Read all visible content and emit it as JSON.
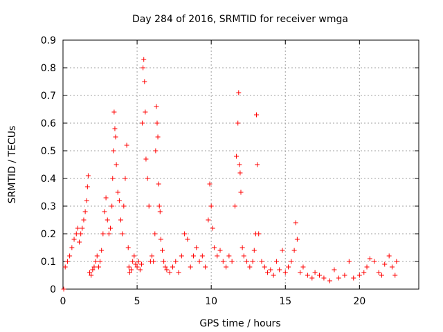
{
  "chart_data": {
    "type": "scatter",
    "title": "Day 284 of 2016, SRMTID for receiver wmga",
    "xlabel": "GPS time / hours",
    "ylabel": "SRMTID / TECUs",
    "xlim": [
      0,
      24
    ],
    "ylim": [
      0,
      0.9
    ],
    "xticks": [
      "0",
      "5",
      "10",
      "15",
      "20"
    ],
    "yticks": [
      "0",
      "0.1",
      "0.2",
      "0.3",
      "0.4",
      "0.5",
      "0.6",
      "0.7",
      "0.8",
      "0.9"
    ],
    "grid": true,
    "marker": "+",
    "color": "#ff0000",
    "series": [
      {
        "name": "SRMTID",
        "x": [
          0.05,
          0.15,
          0.3,
          0.45,
          0.6,
          0.75,
          0.9,
          1.0,
          1.1,
          1.2,
          1.3,
          1.4,
          1.5,
          1.6,
          1.65,
          1.7,
          1.8,
          1.9,
          2.0,
          2.1,
          2.2,
          2.3,
          2.4,
          2.5,
          2.6,
          2.7,
          2.8,
          2.9,
          3.0,
          3.1,
          3.2,
          3.3,
          3.35,
          3.4,
          3.45,
          3.5,
          3.55,
          3.6,
          3.7,
          3.8,
          3.9,
          4.0,
          4.1,
          4.2,
          4.3,
          4.4,
          4.45,
          4.5,
          4.6,
          4.7,
          4.8,
          4.9,
          5.0,
          5.1,
          5.2,
          5.3,
          5.35,
          5.4,
          5.45,
          5.5,
          5.55,
          5.6,
          5.7,
          5.8,
          5.9,
          6.0,
          6.1,
          6.2,
          6.25,
          6.3,
          6.35,
          6.4,
          6.45,
          6.5,
          6.55,
          6.6,
          6.7,
          6.8,
          6.9,
          7.0,
          7.2,
          7.4,
          7.6,
          7.8,
          8.0,
          8.2,
          8.4,
          8.6,
          8.8,
          9.0,
          9.2,
          9.4,
          9.6,
          9.8,
          9.9,
          10.0,
          10.1,
          10.2,
          10.4,
          10.6,
          10.8,
          11.0,
          11.2,
          11.4,
          11.6,
          11.7,
          11.8,
          11.85,
          11.9,
          11.95,
          12.0,
          12.1,
          12.2,
          12.4,
          12.6,
          12.8,
          12.9,
          13.0,
          13.05,
          13.1,
          13.2,
          13.4,
          13.6,
          13.8,
          14.0,
          14.2,
          14.4,
          14.6,
          14.8,
          15.0,
          15.2,
          15.4,
          15.6,
          15.7,
          15.8,
          16.0,
          16.2,
          16.5,
          16.8,
          17.0,
          17.3,
          17.6,
          18.0,
          18.3,
          18.6,
          19.0,
          19.3,
          19.6,
          20.0,
          20.3,
          20.5,
          20.7,
          21.0,
          21.3,
          21.5,
          21.7,
          22.0,
          22.2,
          22.4,
          22.5
        ],
        "y": [
          0.0,
          0.08,
          0.1,
          0.12,
          0.15,
          0.18,
          0.2,
          0.22,
          0.17,
          0.2,
          0.22,
          0.25,
          0.28,
          0.32,
          0.37,
          0.41,
          0.06,
          0.05,
          0.07,
          0.08,
          0.1,
          0.12,
          0.08,
          0.1,
          0.14,
          0.2,
          0.28,
          0.33,
          0.25,
          0.2,
          0.22,
          0.3,
          0.4,
          0.5,
          0.64,
          0.58,
          0.55,
          0.45,
          0.35,
          0.32,
          0.25,
          0.2,
          0.3,
          0.4,
          0.52,
          0.15,
          0.08,
          0.06,
          0.07,
          0.1,
          0.12,
          0.09,
          0.08,
          0.1,
          0.07,
          0.09,
          0.6,
          0.8,
          0.83,
          0.75,
          0.64,
          0.47,
          0.4,
          0.3,
          0.1,
          0.12,
          0.1,
          0.2,
          0.5,
          0.66,
          0.6,
          0.55,
          0.38,
          0.3,
          0.28,
          0.18,
          0.14,
          0.1,
          0.08,
          0.07,
          0.06,
          0.08,
          0.1,
          0.06,
          0.12,
          0.2,
          0.18,
          0.08,
          0.12,
          0.15,
          0.1,
          0.12,
          0.08,
          0.25,
          0.38,
          0.3,
          0.22,
          0.15,
          0.12,
          0.14,
          0.1,
          0.08,
          0.12,
          0.1,
          0.3,
          0.48,
          0.6,
          0.71,
          0.45,
          0.42,
          0.35,
          0.15,
          0.12,
          0.1,
          0.08,
          0.1,
          0.14,
          0.2,
          0.63,
          0.45,
          0.2,
          0.1,
          0.08,
          0.06,
          0.07,
          0.05,
          0.1,
          0.07,
          0.14,
          0.06,
          0.08,
          0.1,
          0.14,
          0.24,
          0.18,
          0.06,
          0.08,
          0.05,
          0.04,
          0.06,
          0.05,
          0.04,
          0.03,
          0.07,
          0.04,
          0.05,
          0.1,
          0.04,
          0.05,
          0.06,
          0.08,
          0.11,
          0.1,
          0.06,
          0.05,
          0.09,
          0.12,
          0.08,
          0.05,
          0.1
        ]
      }
    ]
  }
}
